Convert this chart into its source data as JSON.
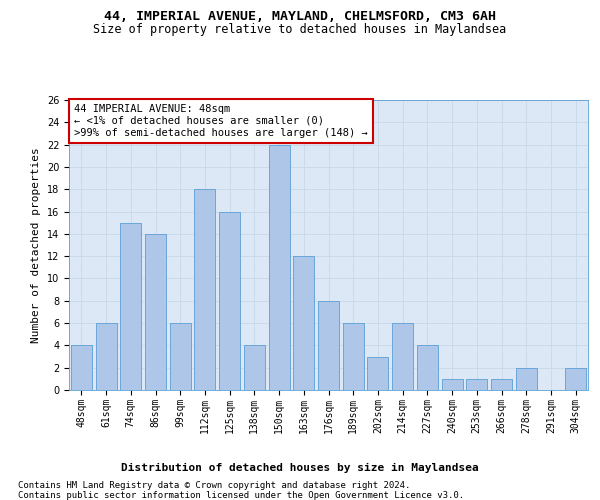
{
  "title_line1": "44, IMPERIAL AVENUE, MAYLAND, CHELMSFORD, CM3 6AH",
  "title_line2": "Size of property relative to detached houses in Maylandsea",
  "xlabel": "Distribution of detached houses by size in Maylandsea",
  "ylabel": "Number of detached properties",
  "categories": [
    "48sqm",
    "61sqm",
    "74sqm",
    "86sqm",
    "99sqm",
    "112sqm",
    "125sqm",
    "138sqm",
    "150sqm",
    "163sqm",
    "176sqm",
    "189sqm",
    "202sqm",
    "214sqm",
    "227sqm",
    "240sqm",
    "253sqm",
    "266sqm",
    "278sqm",
    "291sqm",
    "304sqm"
  ],
  "values": [
    4,
    6,
    15,
    14,
    6,
    18,
    16,
    4,
    22,
    12,
    8,
    6,
    3,
    6,
    4,
    1,
    1,
    1,
    2,
    0,
    2
  ],
  "bar_color": "#aec6e8",
  "bar_edge_color": "#5a9fd4",
  "annotation_box_text": "44 IMPERIAL AVENUE: 48sqm\n← <1% of detached houses are smaller (0)\n>99% of semi-detached houses are larger (148) →",
  "annotation_box_color": "#ffffff",
  "annotation_box_edge_color": "#cc0000",
  "ylim": [
    0,
    26
  ],
  "yticks": [
    0,
    2,
    4,
    6,
    8,
    10,
    12,
    14,
    16,
    18,
    20,
    22,
    24,
    26
  ],
  "grid_color": "#c8d8ea",
  "bg_color": "#dce8f5",
  "footer_line1": "Contains HM Land Registry data © Crown copyright and database right 2024.",
  "footer_line2": "Contains public sector information licensed under the Open Government Licence v3.0.",
  "title_fontsize": 9.5,
  "subtitle_fontsize": 8.5,
  "axis_label_fontsize": 8,
  "tick_fontsize": 7,
  "annotation_fontsize": 7.5,
  "footer_fontsize": 6.5,
  "ylabel_fontsize": 8
}
